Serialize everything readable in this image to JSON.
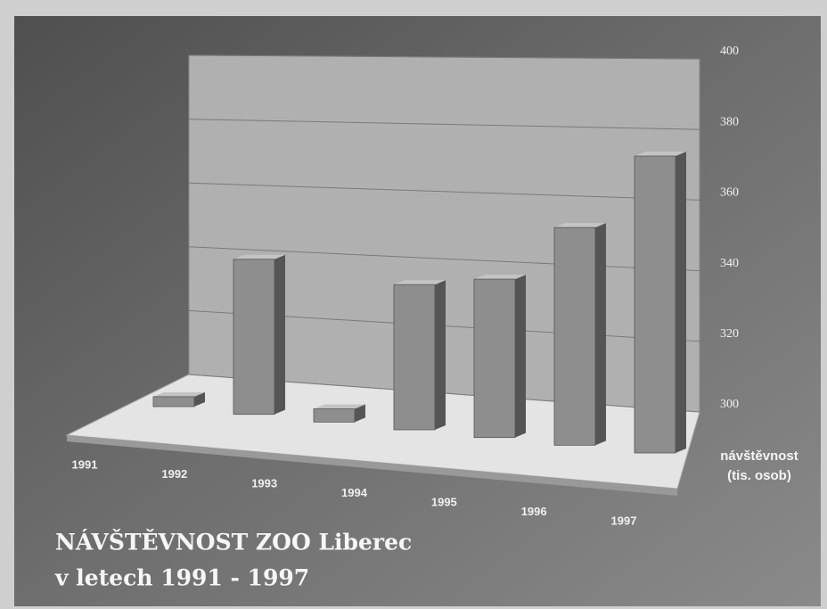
{
  "chart_data": {
    "type": "bar3d",
    "title": "NÁVŠTĚVNOST ZOO Liberec",
    "subtitle": "v letech 1991 - 1997",
    "ylabel": [
      "návštěvnost",
      "(tis. osob)"
    ],
    "categories": [
      "1991",
      "1992",
      "1993",
      "1994",
      "1995",
      "1996",
      "1997"
    ],
    "values": [
      303,
      347,
      304,
      344,
      348,
      366,
      390
    ],
    "color": "#8e8e8e",
    "ylim": [
      300,
      400
    ],
    "yticks": [
      300,
      320,
      340,
      360,
      380,
      400
    ],
    "grid": true
  }
}
